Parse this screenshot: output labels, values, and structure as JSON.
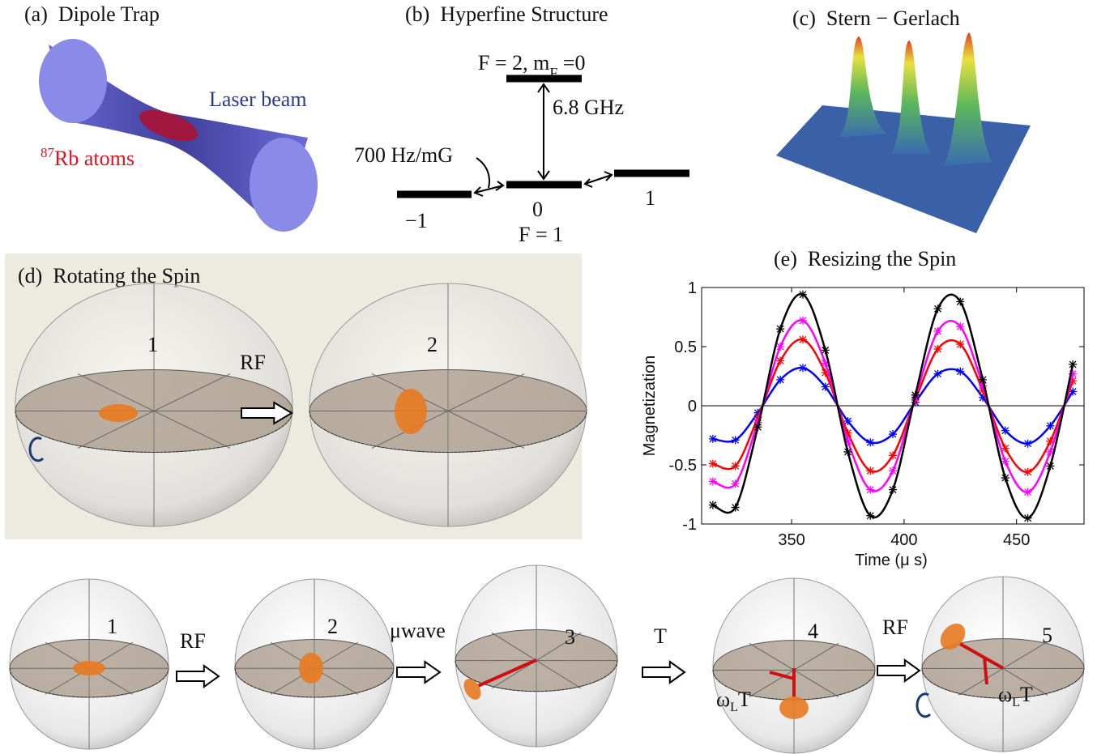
{
  "panel_a": {
    "title": "(a)  Dipole Trap",
    "beam_label": "Laser beam",
    "atoms_label": {
      "sup": "87",
      "text": "Rb atoms"
    }
  },
  "panel_b": {
    "title": "(b)  Hyperfine Structure",
    "upper_level": {
      "main": "F = 2, m",
      "sub": "F",
      "tail": " =0"
    },
    "splitting": "6.8 GHz",
    "zeeman": "700 Hz/mG",
    "sublevels": [
      "−1",
      "0",
      "1"
    ],
    "lower_level": "F = 1"
  },
  "panel_c": {
    "title": "(c)  Stern − Gerlach"
  },
  "panel_d": {
    "title": "(d)  Rotating the Spin",
    "sphere_labels": [
      "1",
      "2"
    ],
    "arrow_label": "RF"
  },
  "chart_data": {
    "type": "line",
    "title": "(e)  Resizing the Spin",
    "x_label": "Time (μ s)",
    "y_label": "Magnetization",
    "x": [
      315,
      325,
      335,
      345,
      355,
      365,
      375,
      385,
      395,
      405,
      415,
      425,
      435,
      445,
      455,
      465,
      475
    ],
    "series": [
      {
        "color": "#0000ff",
        "values": [
          -0.28,
          -0.29,
          -0.06,
          0.22,
          0.32,
          0.16,
          -0.13,
          -0.31,
          -0.24,
          0.03,
          0.27,
          0.29,
          0.07,
          -0.21,
          -0.32,
          -0.17,
          0.12
        ]
      },
      {
        "color": "#ff0000",
        "values": [
          -0.49,
          -0.51,
          -0.1,
          0.38,
          0.56,
          0.28,
          -0.23,
          -0.55,
          -0.42,
          0.05,
          0.48,
          0.52,
          0.13,
          -0.36,
          -0.56,
          -0.3,
          0.21
        ]
      },
      {
        "color": "#ff00ff",
        "values": [
          -0.64,
          -0.66,
          -0.14,
          0.5,
          0.72,
          0.36,
          -0.3,
          -0.71,
          -0.55,
          0.07,
          0.63,
          0.67,
          0.17,
          -0.47,
          -0.73,
          -0.39,
          0.27
        ]
      },
      {
        "color": "#000000",
        "values": [
          -0.84,
          -0.86,
          -0.18,
          0.65,
          0.94,
          0.47,
          -0.39,
          -0.93,
          -0.71,
          0.09,
          0.82,
          0.88,
          0.22,
          -0.61,
          -0.95,
          -0.51,
          0.35
        ]
      }
    ],
    "xlim": [
      310,
      480
    ],
    "ylim": [
      -1,
      1
    ],
    "xticks": [
      350,
      400,
      450
    ],
    "yticks": [
      -1,
      -0.5,
      0,
      0.5,
      1
    ]
  },
  "panel_f": {
    "sphere_labels": [
      "1",
      "2",
      "3",
      "4",
      "5"
    ],
    "arrow_labels": [
      "RF",
      "μwave",
      "T",
      "RF"
    ],
    "phase_label": {
      "main": "ω",
      "sub": "L",
      "tail": "T"
    }
  }
}
